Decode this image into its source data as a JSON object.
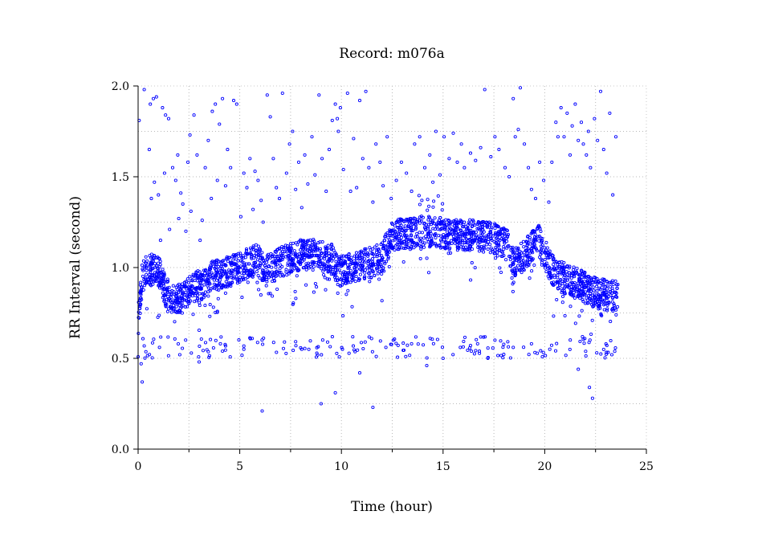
{
  "chart_data": {
    "type": "scatter",
    "title": "Record:  m076a",
    "xlabel": "Time (hour)",
    "ylabel": "RR Interval (second)",
    "xlim": [
      0,
      25
    ],
    "ylim": [
      0,
      2
    ],
    "xticks": [
      0,
      5,
      10,
      15,
      20,
      25
    ],
    "yticks": [
      0.0,
      0.5,
      1.0,
      1.5,
      2.0
    ],
    "x_tick_labels": [
      "0",
      "5",
      "10",
      "15",
      "20",
      "25"
    ],
    "y_tick_labels": [
      "0.0",
      "0.5",
      "1.0",
      "1.5",
      "2.0"
    ],
    "x_minor_ticks": [
      2.5,
      7.5,
      12.5,
      17.5,
      22.5
    ],
    "grid": true,
    "marker_color": "#0000ff",
    "series": [
      {
        "points": [
          [
            0.05,
            1.81
          ],
          [
            0.15,
            0.47
          ],
          [
            0.2,
            0.37
          ],
          [
            0.3,
            1.98
          ],
          [
            0.55,
            1.65
          ],
          [
            0.6,
            1.9
          ],
          [
            0.65,
            1.38
          ],
          [
            0.75,
            1.93
          ],
          [
            0.8,
            1.47
          ],
          [
            0.9,
            1.94
          ],
          [
            1.0,
            1.4
          ],
          [
            1.1,
            1.15
          ],
          [
            1.2,
            1.88
          ],
          [
            1.3,
            1.52
          ],
          [
            1.35,
            1.84
          ],
          [
            1.5,
            1.82
          ],
          [
            1.55,
            1.21
          ],
          [
            1.7,
            1.55
          ],
          [
            1.85,
            1.48
          ],
          [
            1.95,
            1.62
          ],
          [
            2.0,
            1.27
          ],
          [
            2.1,
            1.41
          ],
          [
            2.2,
            1.35
          ],
          [
            2.35,
            1.2
          ],
          [
            2.45,
            1.58
          ],
          [
            2.55,
            1.73
          ],
          [
            2.6,
            1.31
          ],
          [
            2.75,
            1.84
          ],
          [
            2.9,
            1.62
          ],
          [
            3.05,
            1.15
          ],
          [
            3.15,
            1.26
          ],
          [
            3.3,
            1.55
          ],
          [
            3.45,
            1.7
          ],
          [
            3.6,
            1.38
          ],
          [
            3.65,
            1.86
          ],
          [
            3.8,
            1.9
          ],
          [
            3.9,
            1.48
          ],
          [
            4.0,
            1.79
          ],
          [
            4.15,
            1.93
          ],
          [
            4.3,
            1.45
          ],
          [
            4.4,
            1.65
          ],
          [
            4.55,
            1.55
          ],
          [
            4.7,
            1.92
          ],
          [
            4.85,
            1.9
          ],
          [
            5.05,
            1.28
          ],
          [
            5.2,
            1.52
          ],
          [
            5.35,
            1.44
          ],
          [
            5.5,
            1.6
          ],
          [
            5.65,
            1.32
          ],
          [
            5.75,
            1.53
          ],
          [
            5.9,
            1.48
          ],
          [
            6.05,
            1.37
          ],
          [
            6.15,
            1.25
          ],
          [
            6.35,
            1.95
          ],
          [
            6.5,
            1.83
          ],
          [
            6.65,
            1.6
          ],
          [
            6.8,
            1.44
          ],
          [
            6.95,
            1.38
          ],
          [
            7.1,
            1.96
          ],
          [
            7.3,
            1.52
          ],
          [
            7.45,
            1.68
          ],
          [
            7.6,
            1.75
          ],
          [
            7.75,
            1.43
          ],
          [
            7.9,
            1.58
          ],
          [
            8.05,
            1.33
          ],
          [
            8.2,
            1.62
          ],
          [
            8.35,
            1.46
          ],
          [
            8.55,
            1.72
          ],
          [
            8.7,
            1.51
          ],
          [
            8.9,
            1.95
          ],
          [
            9.05,
            1.6
          ],
          [
            9.25,
            1.42
          ],
          [
            9.4,
            1.65
          ],
          [
            9.55,
            1.81
          ],
          [
            9.7,
            1.9
          ],
          [
            9.8,
            1.82
          ],
          [
            9.85,
            1.75
          ],
          [
            9.95,
            1.88
          ],
          [
            10.1,
            1.54
          ],
          [
            10.3,
            1.96
          ],
          [
            10.45,
            1.42
          ],
          [
            10.6,
            1.71
          ],
          [
            10.75,
            1.44
          ],
          [
            10.9,
            1.92
          ],
          [
            11.05,
            1.6
          ],
          [
            11.2,
            1.97
          ],
          [
            11.35,
            1.55
          ],
          [
            11.55,
            1.36
          ],
          [
            11.7,
            1.68
          ],
          [
            11.9,
            1.58
          ],
          [
            12.05,
            1.45
          ],
          [
            12.25,
            1.72
          ],
          [
            12.45,
            1.38
          ],
          [
            12.7,
            1.48
          ],
          [
            12.95,
            1.58
          ],
          [
            13.2,
            1.52
          ],
          [
            13.45,
            1.42
          ],
          [
            13.6,
            1.68
          ],
          [
            13.85,
            1.72
          ],
          [
            14.1,
            1.55
          ],
          [
            14.35,
            1.62
          ],
          [
            14.5,
            1.47
          ],
          [
            14.65,
            1.75
          ],
          [
            14.85,
            1.51
          ],
          [
            15.05,
            1.72
          ],
          [
            15.3,
            1.6
          ],
          [
            15.5,
            1.74
          ],
          [
            15.7,
            1.58
          ],
          [
            15.9,
            1.68
          ],
          [
            16.05,
            1.55
          ],
          [
            16.35,
            1.63
          ],
          [
            16.6,
            1.59
          ],
          [
            16.85,
            1.66
          ],
          [
            17.05,
            1.98
          ],
          [
            17.35,
            1.61
          ],
          [
            17.55,
            1.72
          ],
          [
            17.75,
            1.65
          ],
          [
            18.05,
            1.55
          ],
          [
            18.25,
            1.5
          ],
          [
            18.45,
            1.93
          ],
          [
            18.55,
            1.72
          ],
          [
            18.7,
            1.76
          ],
          [
            18.8,
            1.99
          ],
          [
            19.0,
            1.68
          ],
          [
            19.2,
            1.55
          ],
          [
            19.35,
            1.43
          ],
          [
            19.55,
            1.38
          ],
          [
            19.75,
            1.58
          ],
          [
            19.95,
            1.48
          ],
          [
            20.2,
            1.36
          ],
          [
            20.35,
            1.58
          ],
          [
            20.55,
            1.8
          ],
          [
            20.65,
            1.72
          ],
          [
            20.8,
            1.88
          ],
          [
            20.95,
            1.72
          ],
          [
            21.1,
            1.85
          ],
          [
            21.25,
            1.62
          ],
          [
            21.35,
            1.78
          ],
          [
            21.5,
            1.9
          ],
          [
            21.65,
            1.7
          ],
          [
            21.8,
            1.8
          ],
          [
            21.9,
            1.68
          ],
          [
            22.05,
            1.62
          ],
          [
            22.15,
            1.75
          ],
          [
            22.25,
            1.55
          ],
          [
            22.45,
            1.82
          ],
          [
            22.6,
            1.7
          ],
          [
            22.75,
            1.97
          ],
          [
            22.9,
            1.65
          ],
          [
            23.05,
            1.52
          ],
          [
            23.2,
            1.85
          ],
          [
            23.35,
            1.4
          ],
          [
            23.5,
            1.72
          ],
          [
            1.05,
            0.56
          ],
          [
            2.05,
            0.52
          ],
          [
            3.0,
            0.48
          ],
          [
            4.05,
            0.58
          ],
          [
            5.2,
            0.55
          ],
          [
            6.1,
            0.21
          ],
          [
            7.2,
            0.59
          ],
          [
            8.05,
            0.55
          ],
          [
            9.0,
            0.25
          ],
          [
            9.7,
            0.31
          ],
          [
            10.05,
            0.55
          ],
          [
            10.9,
            0.42
          ],
          [
            11.55,
            0.23
          ],
          [
            12.55,
            0.6
          ],
          [
            13.45,
            0.58
          ],
          [
            14.2,
            0.46
          ],
          [
            15.0,
            0.5
          ],
          [
            15.85,
            0.56
          ],
          [
            16.7,
            0.58
          ],
          [
            17.55,
            0.6
          ],
          [
            18.45,
            0.56
          ],
          [
            19.35,
            0.58
          ],
          [
            20.25,
            0.55
          ],
          [
            21.65,
            0.44
          ],
          [
            22.2,
            0.34
          ],
          [
            22.35,
            0.28
          ],
          [
            23.3,
            0.52
          ]
        ]
      }
    ]
  }
}
